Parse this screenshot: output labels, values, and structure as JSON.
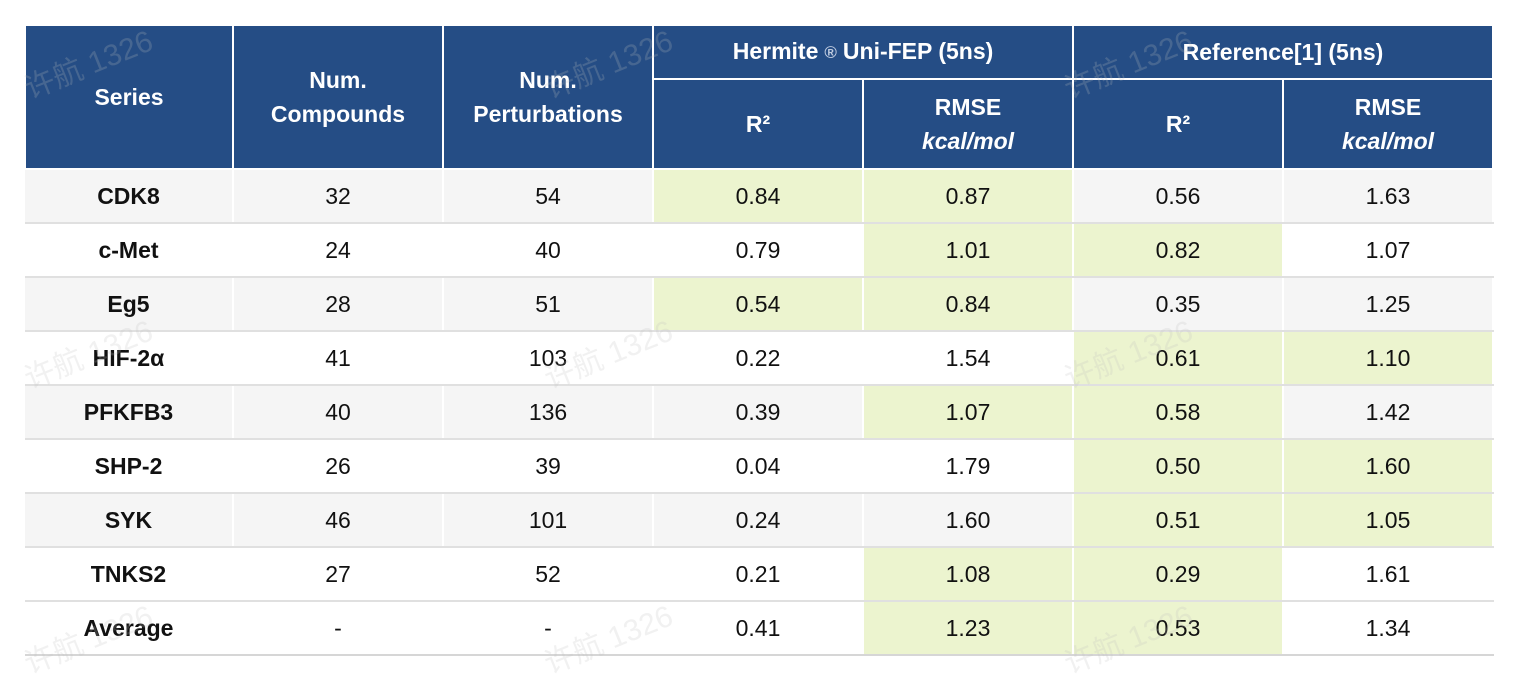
{
  "headers": {
    "series": "Series",
    "num_compounds": [
      "Num.",
      "Compounds"
    ],
    "num_perturbations": [
      "Num.",
      "Perturbations"
    ],
    "group1": {
      "name": "Hermite",
      "mark": "®",
      "suffix": "Uni-FEP (5ns)"
    },
    "group2": "Reference[1] (5ns)",
    "r2": "R²",
    "rmse": "RMSE",
    "unit": "kcal/mol"
  },
  "rows": [
    {
      "series": "CDK8",
      "compounds": "32",
      "perturbations": "54",
      "h_r2": "0.84",
      "h_rmse": "0.87",
      "r_r2": "0.56",
      "r_rmse": "1.63",
      "best": [
        "h_r2",
        "h_rmse"
      ]
    },
    {
      "series": "c-Met",
      "compounds": "24",
      "perturbations": "40",
      "h_r2": "0.79",
      "h_rmse": "1.01",
      "r_r2": "0.82",
      "r_rmse": "1.07",
      "best": [
        "h_rmse",
        "r_r2"
      ]
    },
    {
      "series": "Eg5",
      "compounds": "28",
      "perturbations": "51",
      "h_r2": "0.54",
      "h_rmse": "0.84",
      "r_r2": "0.35",
      "r_rmse": "1.25",
      "best": [
        "h_r2",
        "h_rmse"
      ]
    },
    {
      "series": "HIF-2α",
      "compounds": "41",
      "perturbations": "103",
      "h_r2": "0.22",
      "h_rmse": "1.54",
      "r_r2": "0.61",
      "r_rmse": "1.10",
      "best": [
        "r_r2",
        "r_rmse"
      ]
    },
    {
      "series": "PFKFB3",
      "compounds": "40",
      "perturbations": "136",
      "h_r2": "0.39",
      "h_rmse": "1.07",
      "r_r2": "0.58",
      "r_rmse": "1.42",
      "best": [
        "h_rmse",
        "r_r2"
      ]
    },
    {
      "series": "SHP-2",
      "compounds": "26",
      "perturbations": "39",
      "h_r2": "0.04",
      "h_rmse": "1.79",
      "r_r2": "0.50",
      "r_rmse": "1.60",
      "best": [
        "r_r2",
        "r_rmse"
      ]
    },
    {
      "series": "SYK",
      "compounds": "46",
      "perturbations": "101",
      "h_r2": "0.24",
      "h_rmse": "1.60",
      "r_r2": "0.51",
      "r_rmse": "1.05",
      "best": [
        "r_r2",
        "r_rmse"
      ]
    },
    {
      "series": "TNKS2",
      "compounds": "27",
      "perturbations": "52",
      "h_r2": "0.21",
      "h_rmse": "1.08",
      "r_r2": "0.29",
      "r_rmse": "1.61",
      "best": [
        "h_rmse",
        "r_r2"
      ]
    }
  ],
  "average": {
    "series": "Average",
    "compounds": "-",
    "perturbations": "-",
    "h_r2": "0.41",
    "h_rmse": "1.23",
    "r_r2": "0.53",
    "r_rmse": "1.34",
    "best": [
      "h_rmse",
      "r_r2"
    ]
  },
  "watermark": "许航 1326"
}
